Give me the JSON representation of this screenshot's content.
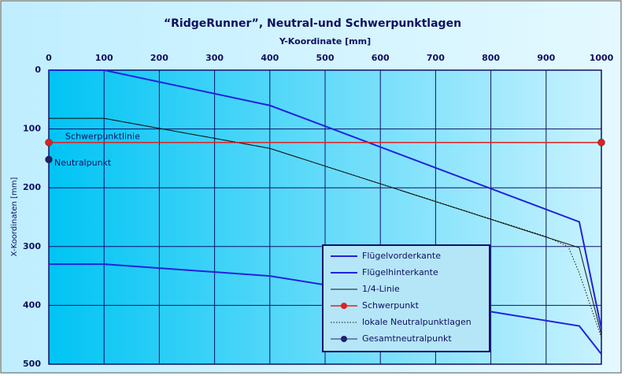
{
  "chart_data": {
    "type": "line",
    "title": "“RidgeRunner”, Neutral-und Schwerpunktlagen",
    "x_label": "Y-Koordinate [mm]",
    "y_label": "X-Koordinaten [mm]",
    "xlim": [
      0,
      1000
    ],
    "xticks": [
      0,
      100,
      200,
      300,
      400,
      500,
      600,
      700,
      800,
      900,
      1000
    ],
    "ylim": [
      0,
      500
    ],
    "yticks": [
      0,
      100,
      200,
      300,
      400,
      500
    ],
    "y_inverted": true,
    "x_axis_position": "top",
    "grid": true,
    "legend_position": "lower right",
    "series": [
      {
        "name": "Flügelvorderkante",
        "color": "#2222dd",
        "width": 2,
        "x": [
          0,
          100,
          400,
          960,
          1000
        ],
        "values": [
          0,
          0,
          60,
          258,
          440
        ]
      },
      {
        "name": "Flügelhinterkante",
        "color": "#2222dd",
        "width": 2,
        "x": [
          0,
          100,
          400,
          960,
          1000
        ],
        "values": [
          330,
          330,
          350,
          435,
          483
        ]
      },
      {
        "name": "1/4-Linie",
        "color": "#111111",
        "width": 1,
        "x": [
          0,
          100,
          400,
          960,
          1000
        ],
        "values": [
          82,
          82,
          133,
          302,
          450
        ]
      },
      {
        "name": "Schwerpunkt",
        "color": "#dd2222",
        "width": 1.5,
        "marker": true,
        "x": [
          0,
          1000
        ],
        "values": [
          123,
          123
        ]
      },
      {
        "name": "lokale Neutralpunktlagen",
        "color": "#111111",
        "width": 1,
        "dash": "dotted",
        "x": [
          0,
          100,
          400,
          900,
          940,
          960,
          1000
        ],
        "values": [
          82,
          82,
          133,
          283,
          300,
          345,
          455
        ]
      },
      {
        "name": "Gesamtneutralpunkt",
        "color": "#202070",
        "width": 1,
        "marker": true,
        "x": [
          0
        ],
        "values": [
          152
        ]
      }
    ],
    "annotations": [
      {
        "text": "Schwerpunktlinie",
        "x": 30,
        "y": 113
      },
      {
        "text": "Neutralpunkt",
        "x": 10,
        "y": 158
      }
    ]
  }
}
